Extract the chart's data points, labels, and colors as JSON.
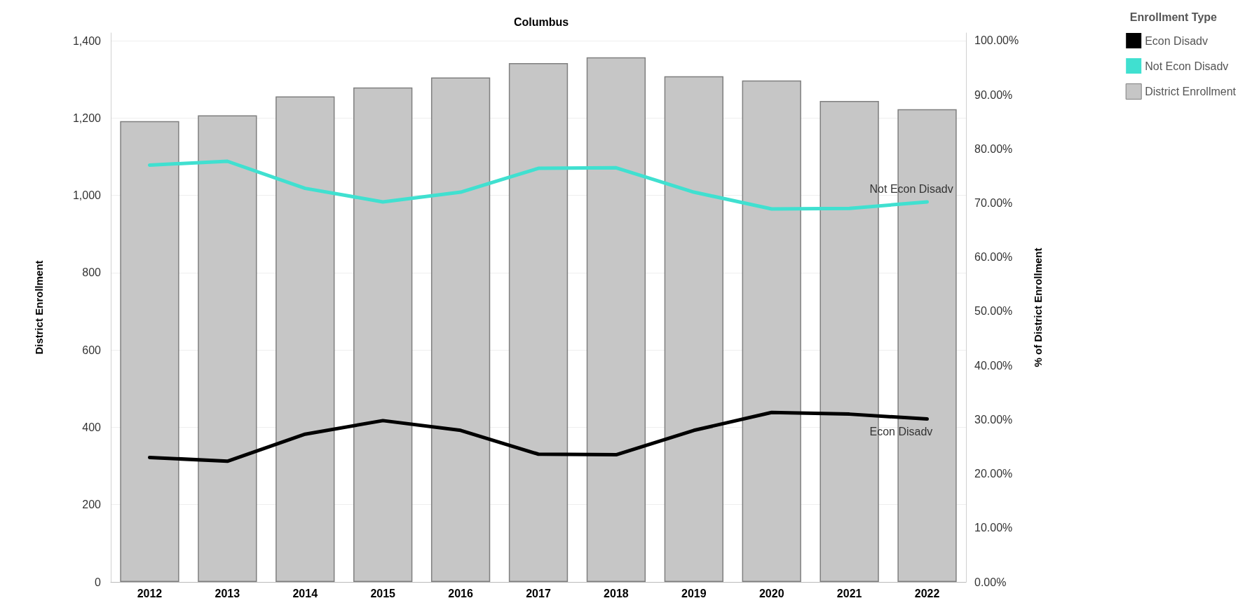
{
  "chart_data": {
    "type": "bar",
    "title": "Columbus",
    "ylabel": "District Enrollment",
    "y2label": "% of District Enrollment",
    "legend_title": "Enrollment Type",
    "categories": [
      "2012",
      "2013",
      "2014",
      "2015",
      "2016",
      "2017",
      "2018",
      "2019",
      "2020",
      "2021",
      "2022"
    ],
    "series": [
      {
        "name": "Econ Disadv",
        "type": "line",
        "axis": "y2",
        "color": "#000000",
        "values": [
          23.0,
          22.3,
          27.3,
          29.8,
          28.0,
          23.6,
          23.5,
          28.0,
          31.3,
          31.0,
          30.1
        ]
      },
      {
        "name": "Not Econ Disadv",
        "type": "line",
        "axis": "y2",
        "color": "#40e0d0",
        "values": [
          77.0,
          77.7,
          72.7,
          70.2,
          72.0,
          76.4,
          76.5,
          72.0,
          68.9,
          69.0,
          70.2
        ]
      },
      {
        "name": "District Enrollment",
        "color": "#c6c6c6",
        "values": [
          1192,
          1207,
          1256,
          1279,
          1305,
          1342,
          1357,
          1308,
          1297,
          1244,
          1223
        ]
      }
    ],
    "ylim": [
      0,
      1420
    ],
    "yticks": [
      0,
      200,
      400,
      600,
      800,
      {
        "value": 1000,
        "label": "1,000"
      },
      {
        "value": 1200,
        "label": "1,200"
      },
      {
        "value": 1400,
        "label": "1,400"
      }
    ],
    "y2lim": [
      0,
      101.4
    ],
    "y2ticks": [
      {
        "value": 0,
        "label": "0.00%"
      },
      {
        "value": 10,
        "label": "10.00%"
      },
      {
        "value": 20,
        "label": "20.00%"
      },
      {
        "value": 30,
        "label": "30.00%"
      },
      {
        "value": 40,
        "label": "40.00%"
      },
      {
        "value": 50,
        "label": "50.00%"
      },
      {
        "value": 60,
        "label": "60.00%"
      },
      {
        "value": 70,
        "label": "70.00%"
      },
      {
        "value": 80,
        "label": "80.00%"
      },
      {
        "value": 90,
        "label": "90.00%"
      },
      {
        "value": 100,
        "label": "100.00%"
      }
    ],
    "grid": "y",
    "legend": "top right",
    "line_style": "solid",
    "marker": "none"
  }
}
